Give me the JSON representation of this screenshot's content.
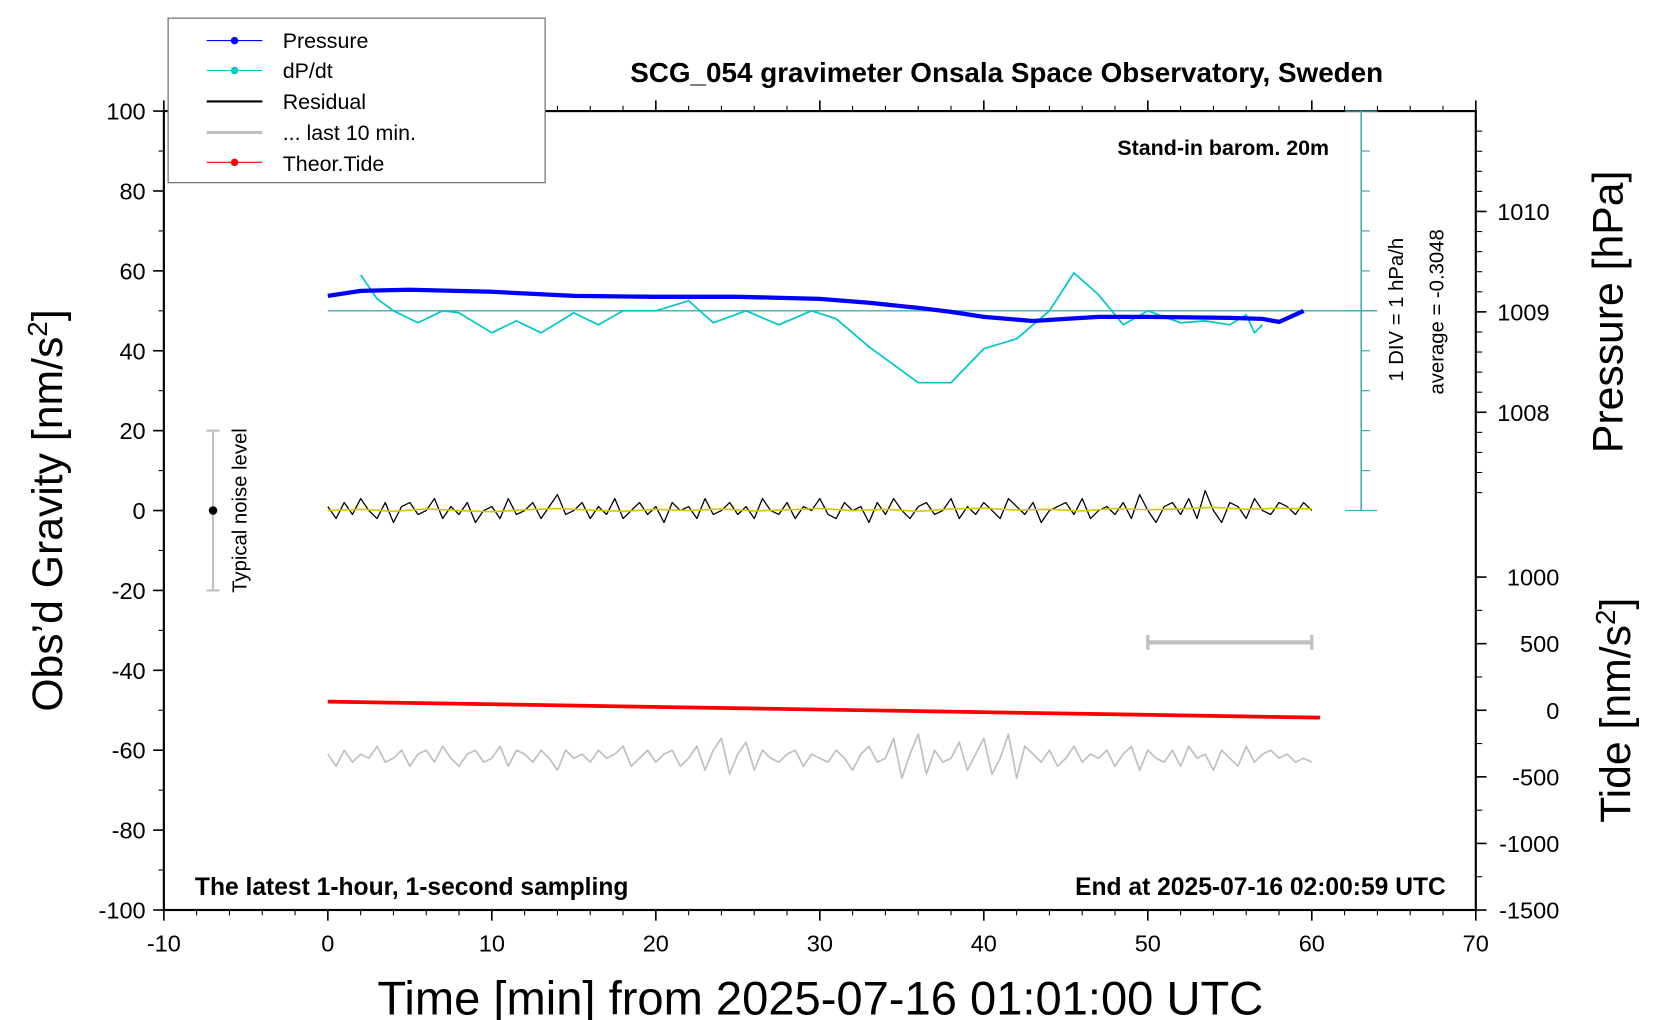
{
  "chart_data": {
    "type": "line",
    "title": "SCG_054 gravimeter Onsala Space Observatory, Sweden",
    "xlabel": "Time [min] from 2025-07-16 01:01:00 UTC",
    "ylabel_left": "Obs'd Gravity [nm/s²]",
    "ylabel_left_main": "Obs’d Gravity [nm/s",
    "ylabel_left_sup": "2",
    "ylabel_left_end": "]",
    "ylabel_right_pressure": "Pressure [hPa]",
    "ylabel_right_tide_main": "Tide [nm/s",
    "ylabel_right_tide_sup": "2",
    "ylabel_right_tide_end": "]",
    "xlim": [
      -10,
      70
    ],
    "ylim": [
      -100,
      100
    ],
    "xticks": [
      "-10",
      "0",
      "10",
      "20",
      "30",
      "40",
      "50",
      "60",
      "70"
    ],
    "yticks": [
      "100",
      "80",
      "60",
      "40",
      "20",
      "0",
      "-20",
      "-40",
      "-60",
      "-80",
      "-100"
    ],
    "pressure_ticks": [
      "1010",
      "1009",
      "1008"
    ],
    "tide_ticks": [
      "1000",
      "500",
      "0",
      "-500",
      "-1000",
      "-1500"
    ],
    "annotations": {
      "barometer": "Stand-in barom. 20m",
      "div_scale": "1 DIV = 1 hPa/h",
      "average": "average = -0.3048",
      "noise": "Typical noise level",
      "sampling": "The latest 1-hour, 1-second sampling",
      "end": "End at 2025-07-16 02:00:59 UTC"
    },
    "legend": {
      "placement": "top-left",
      "entries": [
        "Pressure",
        "dP/dt",
        "Residual",
        "... last 10 min.",
        "Theor.Tide"
      ]
    },
    "colors": {
      "pressure": "#0000ff",
      "dpdt": "#00c8c8",
      "residual": "#000000",
      "smooth": "#d0c800",
      "last10": "#c0c0c0",
      "tide": "#ff0000",
      "scale": "#40b0b0"
    },
    "pressure_hpa": {
      "t": [
        0,
        2,
        5,
        10,
        15,
        20,
        25,
        30,
        33,
        36,
        38,
        40,
        43,
        45,
        47,
        50,
        55,
        57,
        58,
        59.5
      ],
      "values": [
        1009.16,
        1009.21,
        1009.22,
        1009.2,
        1009.16,
        1009.15,
        1009.15,
        1009.13,
        1009.09,
        1009.04,
        1009.0,
        1008.95,
        1008.91,
        1008.93,
        1008.95,
        1008.95,
        1008.94,
        1008.93,
        1008.9,
        1009.01
      ]
    },
    "dpdt_hpa_per_h": {
      "t": [
        2,
        3,
        4,
        5.5,
        7,
        8,
        10,
        11.5,
        13,
        15,
        16.5,
        18,
        20,
        22,
        23.5,
        25.5,
        27.5,
        29.5,
        31,
        33,
        35,
        36,
        38,
        40,
        42,
        44,
        45.5,
        47,
        48.5,
        50,
        52,
        53.5,
        55,
        56,
        56.5,
        57
      ],
      "values": [
        0.9,
        0.3,
        0.0,
        -0.3,
        0.0,
        -0.05,
        -0.55,
        -0.25,
        -0.55,
        -0.05,
        -0.35,
        0.0,
        0.0,
        0.25,
        -0.3,
        0.0,
        -0.35,
        0.0,
        -0.2,
        -0.9,
        -1.5,
        -1.8,
        -1.8,
        -0.95,
        -0.7,
        0.0,
        0.95,
        0.4,
        -0.35,
        0.0,
        -0.3,
        -0.25,
        -0.35,
        -0.1,
        -0.55,
        -0.35
      ]
    },
    "residual": {
      "t_start": 0,
      "t_step": 0.5,
      "values": [
        1,
        -2,
        2,
        -1,
        3,
        0,
        -2,
        2,
        -3,
        1,
        2,
        -1,
        0,
        3,
        -2,
        1,
        -1,
        2,
        -3,
        0,
        1,
        -2,
        3,
        -1,
        0,
        2,
        -2,
        1,
        4,
        -1,
        0,
        2,
        -2,
        1,
        -1,
        3,
        -2,
        0,
        2,
        -1,
        1,
        -3,
        2,
        0,
        1,
        -2,
        3,
        -1,
        0,
        2,
        -1,
        1,
        -2,
        3,
        0,
        -1,
        2,
        -2,
        1,
        0,
        3,
        -1,
        -2,
        2,
        0,
        1,
        -3,
        2,
        -1,
        3,
        0,
        -2,
        1,
        2,
        -1,
        0,
        3,
        -2,
        1,
        -1,
        2,
        0,
        -2,
        3,
        1,
        -1,
        2,
        -3,
        0,
        1,
        2,
        -1,
        3,
        -2,
        0,
        1,
        -1,
        2,
        -2,
        4,
        0,
        -3,
        1,
        2,
        -1,
        3,
        -2,
        5,
        0,
        -3,
        2,
        1,
        -2,
        3,
        0,
        -1,
        2,
        1,
        -1,
        2,
        0
      ]
    },
    "residual_smoothed": {
      "t_start": 0,
      "t_step": 2,
      "values": [
        0,
        0.3,
        -0.2,
        0.4,
        0,
        -0.3,
        0.2,
        0.5,
        0.1,
        -0.2,
        0.3,
        0,
        0.4,
        -0.1,
        0.2,
        0.5,
        0,
        0.3,
        -0.2,
        0.4,
        0.6,
        0.1,
        0.3,
        -0.1,
        0.5,
        0.2,
        0.4,
        0.8,
        0.3,
        0.6,
        0.4
      ]
    },
    "last_10_min": {
      "t_start": 0,
      "t_step": 0.5,
      "values": [
        -61,
        -64,
        -60,
        -63,
        -61,
        -62,
        -59,
        -63,
        -62,
        -60,
        -64,
        -61,
        -60,
        -63,
        -59,
        -62,
        -64,
        -61,
        -60,
        -63,
        -62,
        -59,
        -64,
        -60,
        -61,
        -63,
        -60,
        -62,
        -65,
        -60,
        -62,
        -61,
        -63,
        -60,
        -62,
        -61,
        -59,
        -64,
        -62,
        -60,
        -63,
        -61,
        -60,
        -64,
        -62,
        -59,
        -65,
        -60,
        -57,
        -66,
        -61,
        -58,
        -65,
        -60,
        -62,
        -63,
        -61,
        -60,
        -64,
        -61,
        -62,
        -63,
        -60,
        -62,
        -65,
        -61,
        -59,
        -63,
        -62,
        -57,
        -67,
        -61,
        -56,
        -66,
        -60,
        -63,
        -62,
        -58,
        -65,
        -61,
        -57,
        -66,
        -62,
        -56,
        -67,
        -59,
        -61,
        -63,
        -60,
        -64,
        -62,
        -59,
        -63,
        -61,
        -62,
        -60,
        -64,
        -61,
        -59,
        -65,
        -60,
        -62,
        -63,
        -60,
        -64,
        -59,
        -62,
        -61,
        -65,
        -60,
        -62,
        -64,
        -59,
        -63,
        -61,
        -60,
        -62,
        -61,
        -63,
        -62,
        -63
      ]
    },
    "theor_tide": {
      "t": [
        0,
        60.5
      ],
      "values": [
        65,
        -55
      ]
    },
    "noise_bar": {
      "t": -7,
      "range": [
        -20,
        20
      ]
    },
    "time_scale_bar": {
      "t": [
        50,
        60
      ],
      "y": -33
    }
  }
}
